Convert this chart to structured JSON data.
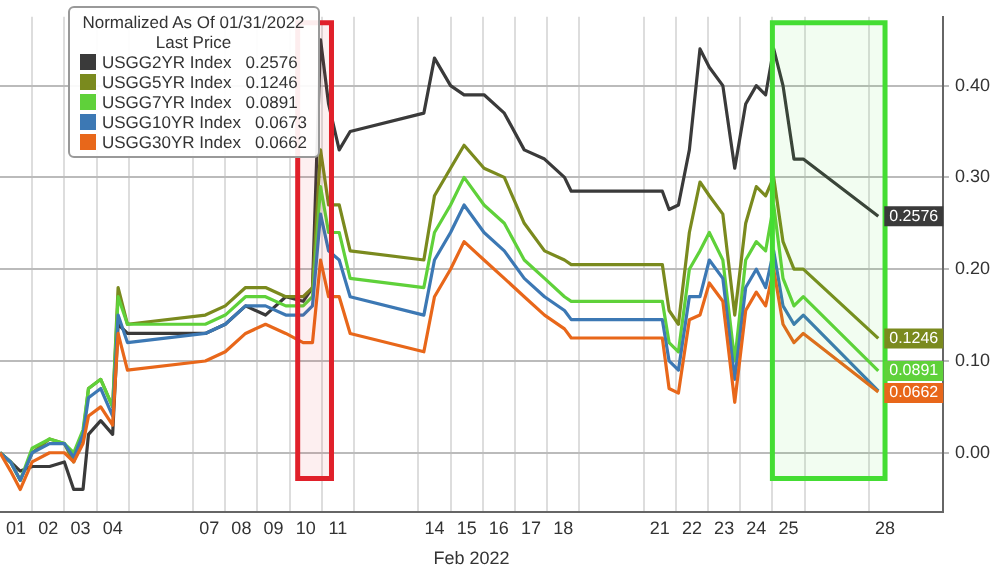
{
  "chart_data": {
    "type": "line",
    "legend_title": "Normalized As Of 01/31/2022\nLast Price",
    "xlabel": "Feb 2022",
    "x": [
      0.5,
      0.83,
      1.13,
      1.5,
      2.04,
      2.5,
      2.79,
      3.08,
      3.25,
      3.63,
      4.0,
      4.17,
      4.46,
      6.88,
      7.5,
      8.13,
      8.75,
      9.38,
      9.92,
      10.21,
      10.46,
      10.71,
      11.04,
      11.38,
      13.67,
      14.0,
      14.5,
      14.92,
      15.54,
      16.17,
      16.79,
      17.42,
      18.04,
      18.25,
      21.08,
      21.29,
      21.58,
      21.92,
      22.25,
      22.54,
      22.96,
      23.33,
      23.67,
      24.0,
      24.29,
      24.54,
      24.83,
      25.17,
      25.46,
      27.79
    ],
    "series": [
      {
        "name": "USGG2YR Index   0.2576",
        "color": "#3a3a3a",
        "values": [
          0,
          -0.01,
          -0.02,
          -0.015,
          -0.015,
          -0.01,
          -0.04,
          -0.04,
          0.02,
          0.035,
          0.02,
          0.14,
          0.13,
          0.13,
          0.14,
          0.16,
          0.15,
          0.17,
          0.165,
          0.18,
          0.45,
          0.38,
          0.33,
          0.35,
          0.37,
          0.43,
          0.4,
          0.39,
          0.39,
          0.37,
          0.33,
          0.32,
          0.3,
          0.285,
          0.285,
          0.265,
          0.27,
          0.33,
          0.44,
          0.42,
          0.4,
          0.31,
          0.38,
          0.4,
          0.39,
          0.44,
          0.4,
          0.32,
          0.32,
          0.2576
        ],
        "value_labels": [
          null,
          null,
          null,
          null,
          null,
          null,
          null,
          null,
          null,
          null,
          null,
          null,
          null,
          null,
          null,
          null,
          null,
          null,
          null,
          null,
          null,
          null,
          null,
          null,
          null,
          null,
          null,
          null,
          null,
          null,
          null,
          null,
          null,
          null,
          null,
          null,
          null,
          null,
          null,
          null,
          null,
          null,
          null,
          null,
          null,
          null,
          null,
          null,
          null,
          "0.2576"
        ]
      },
      {
        "name": "USGG5YR Index   0.1246",
        "color": "#7a8a1e",
        "values": [
          0,
          -0.01,
          -0.03,
          0,
          0.015,
          0.01,
          -0.01,
          0.02,
          0.07,
          0.08,
          0.05,
          0.18,
          0.14,
          0.15,
          0.16,
          0.18,
          0.18,
          0.17,
          0.17,
          0.18,
          0.33,
          0.27,
          0.27,
          0.22,
          0.21,
          0.28,
          0.31,
          0.335,
          0.31,
          0.3,
          0.25,
          0.22,
          0.21,
          0.205,
          0.205,
          0.155,
          0.14,
          0.24,
          0.295,
          0.28,
          0.26,
          0.15,
          0.25,
          0.29,
          0.28,
          0.3,
          0.23,
          0.2,
          0.2,
          0.1246
        ],
        "value_labels": [
          null,
          null,
          null,
          null,
          null,
          null,
          null,
          null,
          null,
          null,
          null,
          null,
          null,
          null,
          null,
          null,
          null,
          null,
          null,
          null,
          null,
          null,
          null,
          null,
          null,
          null,
          null,
          null,
          null,
          null,
          null,
          null,
          null,
          null,
          null,
          null,
          null,
          null,
          null,
          null,
          null,
          null,
          null,
          null,
          null,
          null,
          null,
          null,
          null,
          "0.1246"
        ]
      },
      {
        "name": "USGG7YR Index   0.0891",
        "color": "#5fd13a",
        "values": [
          0,
          -0.01,
          -0.03,
          0.005,
          0.015,
          0.01,
          0,
          0.025,
          0.07,
          0.08,
          0.05,
          0.17,
          0.14,
          0.14,
          0.15,
          0.17,
          0.17,
          0.16,
          0.16,
          0.17,
          0.29,
          0.24,
          0.24,
          0.19,
          0.18,
          0.24,
          0.27,
          0.3,
          0.27,
          0.25,
          0.21,
          0.19,
          0.17,
          0.165,
          0.165,
          0.12,
          0.11,
          0.2,
          0.22,
          0.24,
          0.21,
          0.1,
          0.21,
          0.23,
          0.22,
          0.27,
          0.19,
          0.16,
          0.17,
          0.0891
        ],
        "value_labels": [
          null,
          null,
          null,
          null,
          null,
          null,
          null,
          null,
          null,
          null,
          null,
          null,
          null,
          null,
          null,
          null,
          null,
          null,
          null,
          null,
          null,
          null,
          null,
          null,
          null,
          null,
          null,
          null,
          null,
          null,
          null,
          null,
          null,
          null,
          null,
          null,
          null,
          null,
          null,
          null,
          null,
          null,
          null,
          null,
          null,
          null,
          null,
          null,
          null,
          "0.0891"
        ]
      },
      {
        "name": "USGG10YR Index   0.0673",
        "color": "#3c78b4",
        "values": [
          0,
          -0.01,
          -0.03,
          0,
          0.01,
          0.01,
          -0.005,
          0.02,
          0.06,
          0.07,
          0.04,
          0.15,
          0.12,
          0.13,
          0.14,
          0.16,
          0.16,
          0.15,
          0.15,
          0.16,
          0.26,
          0.22,
          0.21,
          0.17,
          0.15,
          0.21,
          0.24,
          0.27,
          0.24,
          0.22,
          0.19,
          0.17,
          0.155,
          0.145,
          0.145,
          0.1,
          0.09,
          0.17,
          0.17,
          0.21,
          0.19,
          0.08,
          0.18,
          0.2,
          0.18,
          0.22,
          0.16,
          0.14,
          0.15,
          0.0673
        ]
      },
      {
        "name": "USGG30YR Index   0.0662",
        "color": "#e8671a",
        "values": [
          0,
          -0.02,
          -0.04,
          -0.01,
          0,
          0,
          -0.01,
          0.01,
          0.04,
          0.05,
          0.03,
          0.13,
          0.09,
          0.1,
          0.11,
          0.13,
          0.14,
          0.13,
          0.12,
          0.12,
          0.21,
          0.17,
          0.17,
          0.13,
          0.11,
          0.17,
          0.2,
          0.23,
          0.21,
          0.19,
          0.17,
          0.15,
          0.135,
          0.125,
          0.125,
          0.07,
          0.065,
          0.145,
          0.15,
          0.185,
          0.165,
          0.055,
          0.155,
          0.175,
          0.16,
          0.2,
          0.14,
          0.12,
          0.13,
          0.0662
        ],
        "value_labels": [
          null,
          null,
          null,
          null,
          null,
          null,
          null,
          null,
          null,
          null,
          null,
          null,
          null,
          null,
          null,
          null,
          null,
          null,
          null,
          null,
          null,
          null,
          null,
          null,
          null,
          null,
          null,
          null,
          null,
          null,
          null,
          null,
          null,
          null,
          null,
          null,
          null,
          null,
          null,
          null,
          null,
          null,
          null,
          null,
          null,
          null,
          null,
          null,
          null,
          "0.0662"
        ]
      }
    ],
    "xlim": [
      0.5,
      29.8
    ],
    "xticks": [
      {
        "value": 1,
        "label": "01"
      },
      {
        "value": 1.5,
        "label": null
      },
      {
        "value": 2,
        "label": "02"
      },
      {
        "value": 2.5,
        "label": null
      },
      {
        "value": 3,
        "label": "03"
      },
      {
        "value": 3.5,
        "label": null
      },
      {
        "value": 4,
        "label": "04"
      },
      {
        "value": 4.5,
        "label": null
      },
      {
        "value": 6.5,
        "label": null
      },
      {
        "value": 7,
        "label": "07"
      },
      {
        "value": 7.5,
        "label": null
      },
      {
        "value": 8,
        "label": "08"
      },
      {
        "value": 8.5,
        "label": null
      },
      {
        "value": 9,
        "label": "09"
      },
      {
        "value": 9.5,
        "label": null
      },
      {
        "value": 10,
        "label": "10"
      },
      {
        "value": 10.5,
        "label": null
      },
      {
        "value": 11,
        "label": "11"
      },
      {
        "value": 11.5,
        "label": null
      },
      {
        "value": 13.5,
        "label": null
      },
      {
        "value": 14,
        "label": "14"
      },
      {
        "value": 14.5,
        "label": null
      },
      {
        "value": 15,
        "label": "15"
      },
      {
        "value": 15.5,
        "label": null
      },
      {
        "value": 16,
        "label": "16"
      },
      {
        "value": 16.5,
        "label": null
      },
      {
        "value": 17,
        "label": "17"
      },
      {
        "value": 17.5,
        "label": null
      },
      {
        "value": 18,
        "label": "18"
      },
      {
        "value": 18.5,
        "label": null
      },
      {
        "value": 20.5,
        "label": null
      },
      {
        "value": 21,
        "label": "21"
      },
      {
        "value": 21.5,
        "label": null
      },
      {
        "value": 22,
        "label": "22"
      },
      {
        "value": 22.5,
        "label": null
      },
      {
        "value": 23,
        "label": "23"
      },
      {
        "value": 23.5,
        "label": null
      },
      {
        "value": 24,
        "label": "24"
      },
      {
        "value": 24.5,
        "label": null
      },
      {
        "value": 25,
        "label": "25"
      },
      {
        "value": 25.5,
        "label": null
      },
      {
        "value": 27.5,
        "label": null
      },
      {
        "value": 28,
        "label": "28"
      }
    ],
    "ylim": [
      -0.065,
      0.475
    ],
    "yticks": [
      {
        "value": 0,
        "label": "0.00"
      },
      {
        "value": 0.1,
        "label": "0.10"
      },
      {
        "value": 0.2,
        "label": "0.20"
      },
      {
        "value": 0.3,
        "label": "0.30"
      },
      {
        "value": 0.4,
        "label": "0.40"
      }
    ],
    "bands": [
      {
        "axis": "x",
        "from": 9.75,
        "to": 10.8,
        "color": "#e0202a"
      },
      {
        "axis": "x",
        "from": 24.5,
        "to": 28.0,
        "color": "#44dd33"
      }
    ],
    "grid": true,
    "legend": "top left",
    "marker": "none",
    "line_style": "solid"
  }
}
